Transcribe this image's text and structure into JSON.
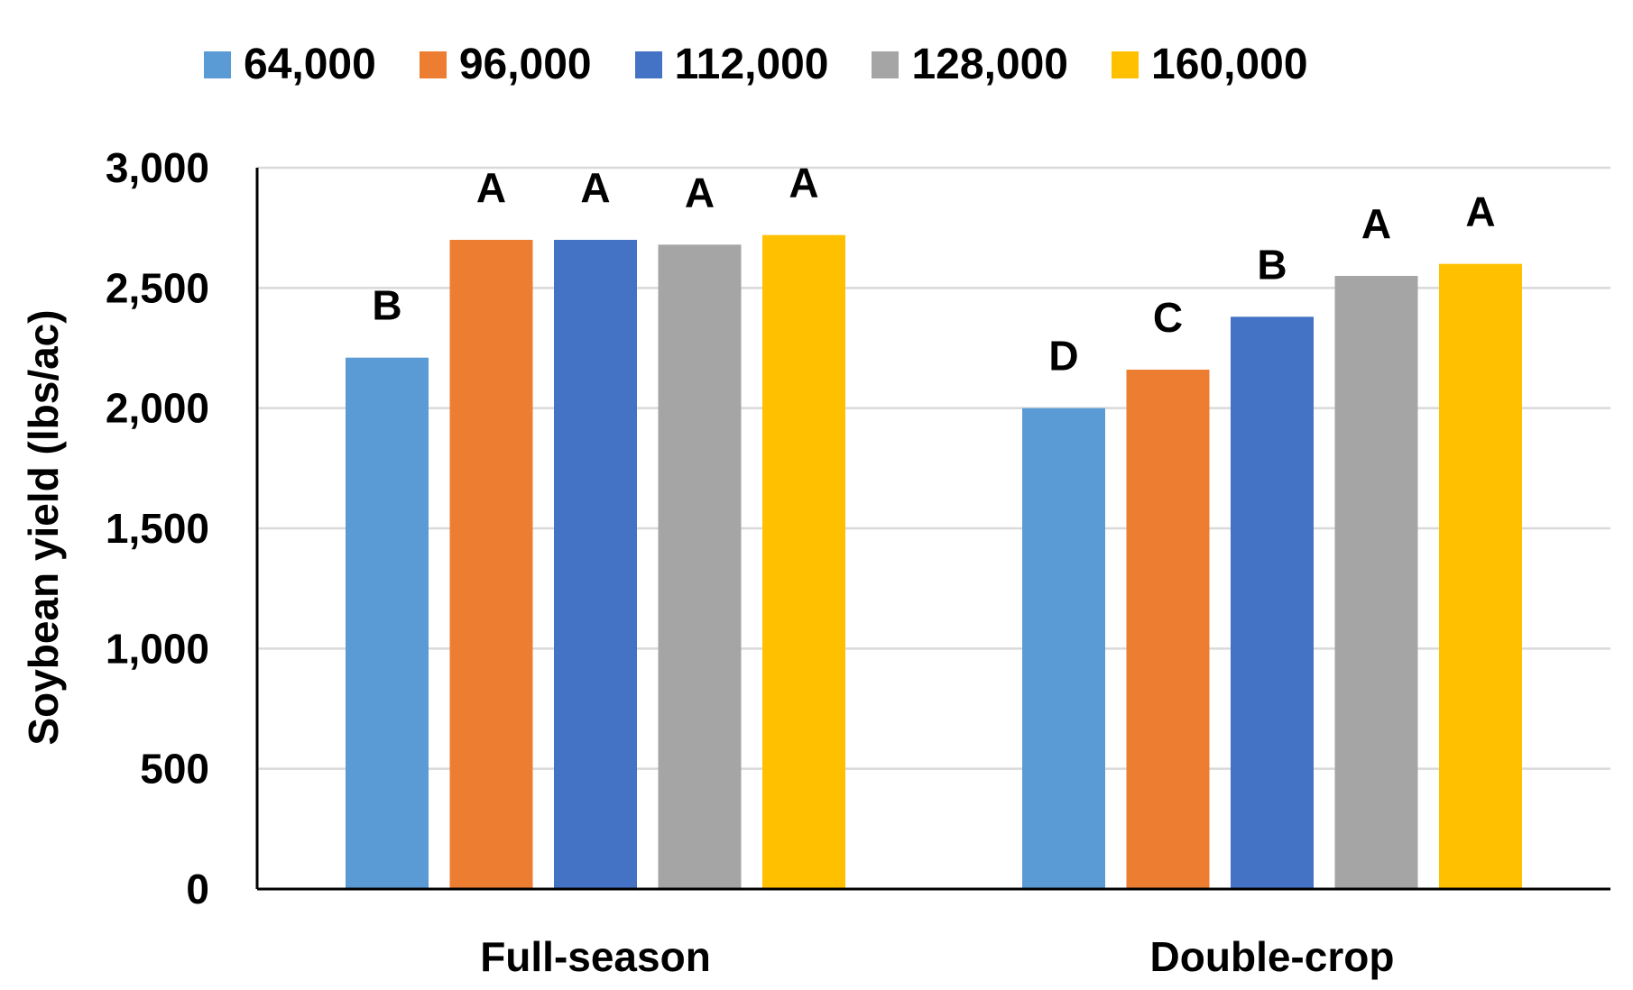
{
  "chart_data": {
    "type": "bar",
    "title": "",
    "xlabel": "",
    "ylabel": "Soybean yield (lbs/ac)",
    "ylim": [
      0,
      3000
    ],
    "yticks": [
      0,
      500,
      1000,
      1500,
      2000,
      2500,
      3000
    ],
    "ytick_labels": [
      "0",
      "500",
      "1,000",
      "1,500",
      "2,000",
      "2,500",
      "3,000"
    ],
    "grid": true,
    "legend_position": "top",
    "categories": [
      "Full-season",
      "Double-crop"
    ],
    "series": [
      {
        "name": "64,000",
        "color": "#5B9BD5",
        "values": [
          2210,
          2000
        ],
        "letters": [
          "B",
          "D"
        ]
      },
      {
        "name": "96,000",
        "color": "#ED7D31",
        "values": [
          2700,
          2160
        ],
        "letters": [
          "A",
          "C"
        ]
      },
      {
        "name": "112,000",
        "color": "#4472C4",
        "values": [
          2700,
          2380
        ],
        "letters": [
          "A",
          "B"
        ]
      },
      {
        "name": "128,000",
        "color": "#A5A5A5",
        "values": [
          2680,
          2550
        ],
        "letters": [
          "A",
          "A"
        ]
      },
      {
        "name": "160,000",
        "color": "#FFC000",
        "values": [
          2720,
          2600
        ],
        "letters": [
          "A",
          "A"
        ]
      }
    ]
  }
}
